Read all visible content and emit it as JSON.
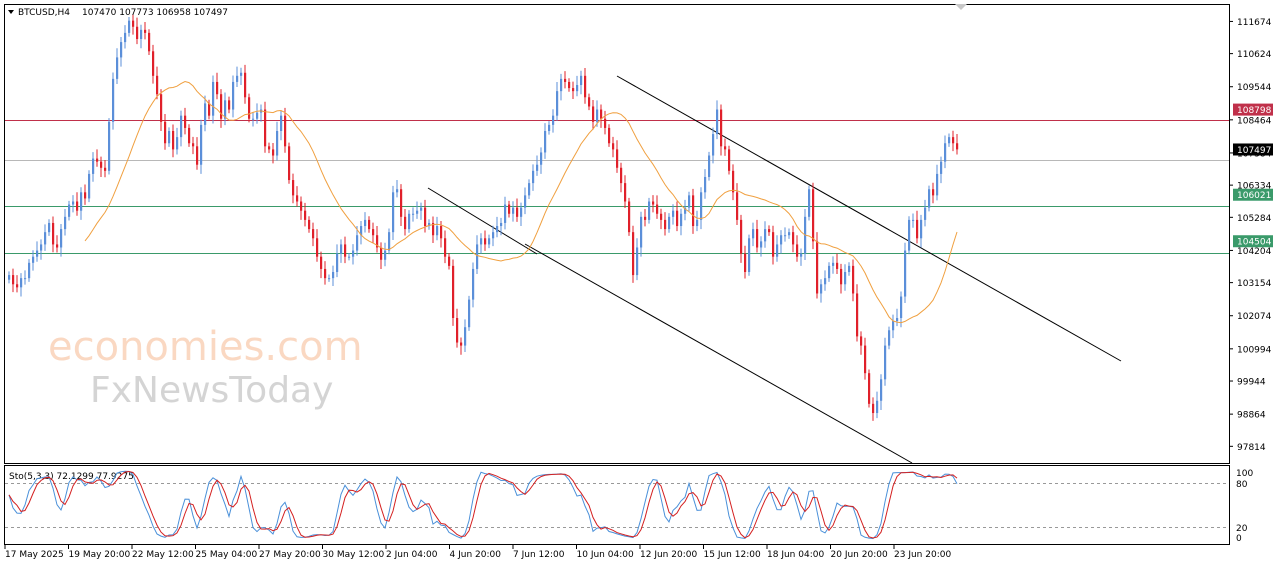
{
  "header": {
    "symbol": "BTCUSD,H4",
    "ohlc": "107470 107773 106958 107497"
  },
  "indicator": {
    "label": "Sto(5,3,3) 72.1299 77.9275",
    "levels": [
      80,
      20
    ],
    "axis_ticks": [
      "100",
      "80",
      "20",
      "0"
    ]
  },
  "watermark": {
    "line1": "economies.com",
    "line2": "FxNewsToday"
  },
  "colors": {
    "bull": "#5b8fd9",
    "bear": "#e0202a",
    "ma": "#f0a040",
    "resistance_line": "#c0304a",
    "support_line": "#3a9a6a",
    "current_price_line": "#b8b8b8",
    "stoch_main": "#4a90d9",
    "stoch_signal": "#d42020"
  },
  "chart_data": {
    "type": "candlestick",
    "symbol": "BTCUSD",
    "timeframe": "H4",
    "ylim": [
      97270,
      112210
    ],
    "y_ticks": [
      111674,
      110624,
      109544,
      108464,
      107384,
      106334,
      105284,
      104204,
      103154,
      102074,
      100994,
      99944,
      98864,
      97814
    ],
    "x_ticks": [
      "17 May 2025",
      "19 May 20:00",
      "22 May 12:00",
      "25 May 04:00",
      "27 May 20:00",
      "30 May 12:00",
      "2 Jun 04:00",
      "4 Jun 20:00",
      "7 Jun 12:00",
      "10 Jun 04:00",
      "12 Jun 20:00",
      "15 Jun 12:00",
      "18 Jun 04:00",
      "20 Jun 20:00",
      "23 Jun 20:00"
    ],
    "price_tags": [
      {
        "value": 108798,
        "label": "108798",
        "kind": "resistance"
      },
      {
        "value": 107497,
        "label": "107497",
        "kind": "current"
      },
      {
        "value": 106021,
        "label": "106021",
        "kind": "support"
      },
      {
        "value": 104504,
        "label": "104504",
        "kind": "support"
      }
    ],
    "closes": [
      103400,
      103100,
      103000,
      103300,
      103300,
      103800,
      104000,
      104200,
      104400,
      104800,
      105100,
      104400,
      104300,
      104900,
      105300,
      105700,
      105800,
      105500,
      106100,
      105900,
      106700,
      107200,
      107100,
      106900,
      106800,
      108400,
      109800,
      110500,
      111000,
      111300,
      111700,
      111500,
      111100,
      111400,
      111300,
      110700,
      109900,
      109300,
      108400,
      107700,
      108100,
      107500,
      107900,
      108600,
      108200,
      107700,
      107600,
      107000,
      108300,
      109000,
      108600,
      109700,
      109300,
      108500,
      109100,
      108800,
      109700,
      109900,
      110000,
      109200,
      108500,
      108500,
      108700,
      108800,
      107600,
      107500,
      107300,
      108100,
      108600,
      107600,
      106500,
      106000,
      105800,
      105500,
      105200,
      104900,
      104600,
      104000,
      103600,
      103300,
      103300,
      103500,
      104100,
      104400,
      104000,
      104000,
      104200,
      104700,
      105000,
      105200,
      104900,
      104700,
      104300,
      103900,
      104200,
      104800,
      106100,
      106200,
      105300,
      104900,
      105400,
      105400,
      105500,
      105600,
      105000,
      105100,
      104700,
      105000,
      104600,
      104000,
      103700,
      102000,
      101200,
      101100,
      101700,
      102600,
      103600,
      104400,
      104600,
      104400,
      104600,
      104800,
      105000,
      105100,
      105700,
      105400,
      105600,
      105300,
      105600,
      106000,
      106400,
      106800,
      107000,
      107400,
      108100,
      108300,
      108600,
      109400,
      109800,
      109700,
      109500,
      109400,
      109600,
      109900,
      109200,
      108900,
      108400,
      108800,
      108500,
      108200,
      107700,
      107500,
      106900,
      106400,
      105800,
      104800,
      103400,
      104300,
      105300,
      105200,
      105800,
      105700,
      105400,
      105200,
      104900,
      105300,
      105500,
      105000,
      105400,
      105600,
      106000,
      105000,
      105200,
      106100,
      106600,
      107300,
      108000,
      108800,
      107600,
      107500,
      106800,
      106100,
      105200,
      104100,
      103500,
      104600,
      104900,
      104300,
      104500,
      104900,
      104800,
      104000,
      104400,
      104700,
      104700,
      104800,
      104400,
      104000,
      104100,
      105300,
      106200,
      104500,
      102800,
      103100,
      103300,
      103700,
      103800,
      103600,
      103100,
      103500,
      103700,
      102800,
      101400,
      101100,
      100200,
      99200,
      98900,
      99300,
      100000,
      101100,
      101600,
      101900,
      102000,
      102700,
      104200,
      105200,
      105200,
      104600,
      105200,
      105600,
      106200,
      106000,
      106700,
      107100,
      107700,
      107900,
      107700,
      107500
    ]
  }
}
